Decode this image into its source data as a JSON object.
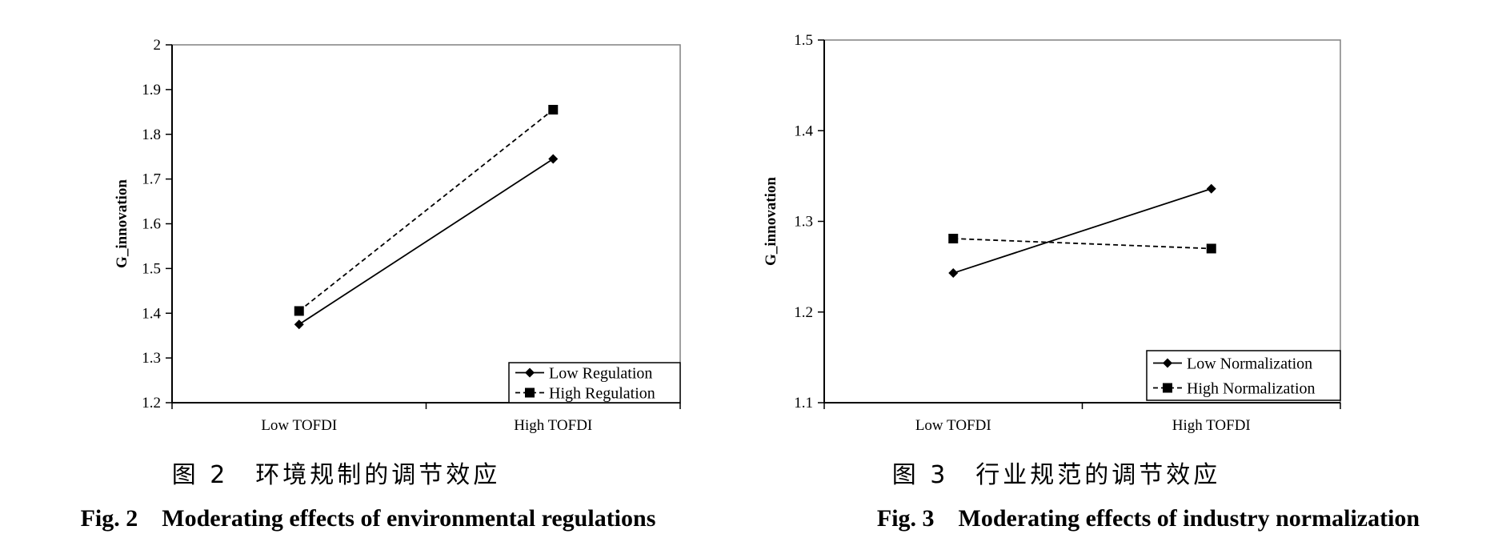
{
  "chart_data": [
    {
      "type": "line",
      "categories": [
        "Low TOFDI",
        "High TOFDI"
      ],
      "ylabel": "G_innovation",
      "xlabel": "",
      "ylim": [
        1.2,
        2.0
      ],
      "yticks": [
        "1.2",
        "1.3",
        "1.4",
        "1.5",
        "1.6",
        "1.7",
        "1.8",
        "1.9",
        "2"
      ],
      "legend_position": "bottom-right",
      "series": [
        {
          "name": "Low Regulation",
          "values": [
            1.375,
            1.745
          ],
          "line_style": "solid",
          "marker": "diamond"
        },
        {
          "name": "High Regulation",
          "values": [
            1.405,
            1.855
          ],
          "line_style": "dashed",
          "marker": "square"
        }
      ],
      "caption_cn": "图 2　环境规制的调节效应",
      "caption_en": "Fig. 2　Moderating effects of environmental regulations"
    },
    {
      "type": "line",
      "categories": [
        "Low TOFDI",
        "High TOFDI"
      ],
      "ylabel": "G_innovation",
      "xlabel": "",
      "ylim": [
        1.1,
        1.5
      ],
      "yticks": [
        "1.1",
        "1.2",
        "1.3",
        "1.4",
        "1.5"
      ],
      "legend_position": "bottom-right",
      "series": [
        {
          "name": "Low Normalization",
          "values": [
            1.243,
            1.336
          ],
          "line_style": "solid",
          "marker": "diamond"
        },
        {
          "name": "High Normalization",
          "values": [
            1.281,
            1.27
          ],
          "line_style": "dashed",
          "marker": "square"
        }
      ],
      "caption_cn": "图 3　行业规范的调节效应",
      "caption_en": "Fig. 3　Moderating effects of industry normalization"
    }
  ]
}
